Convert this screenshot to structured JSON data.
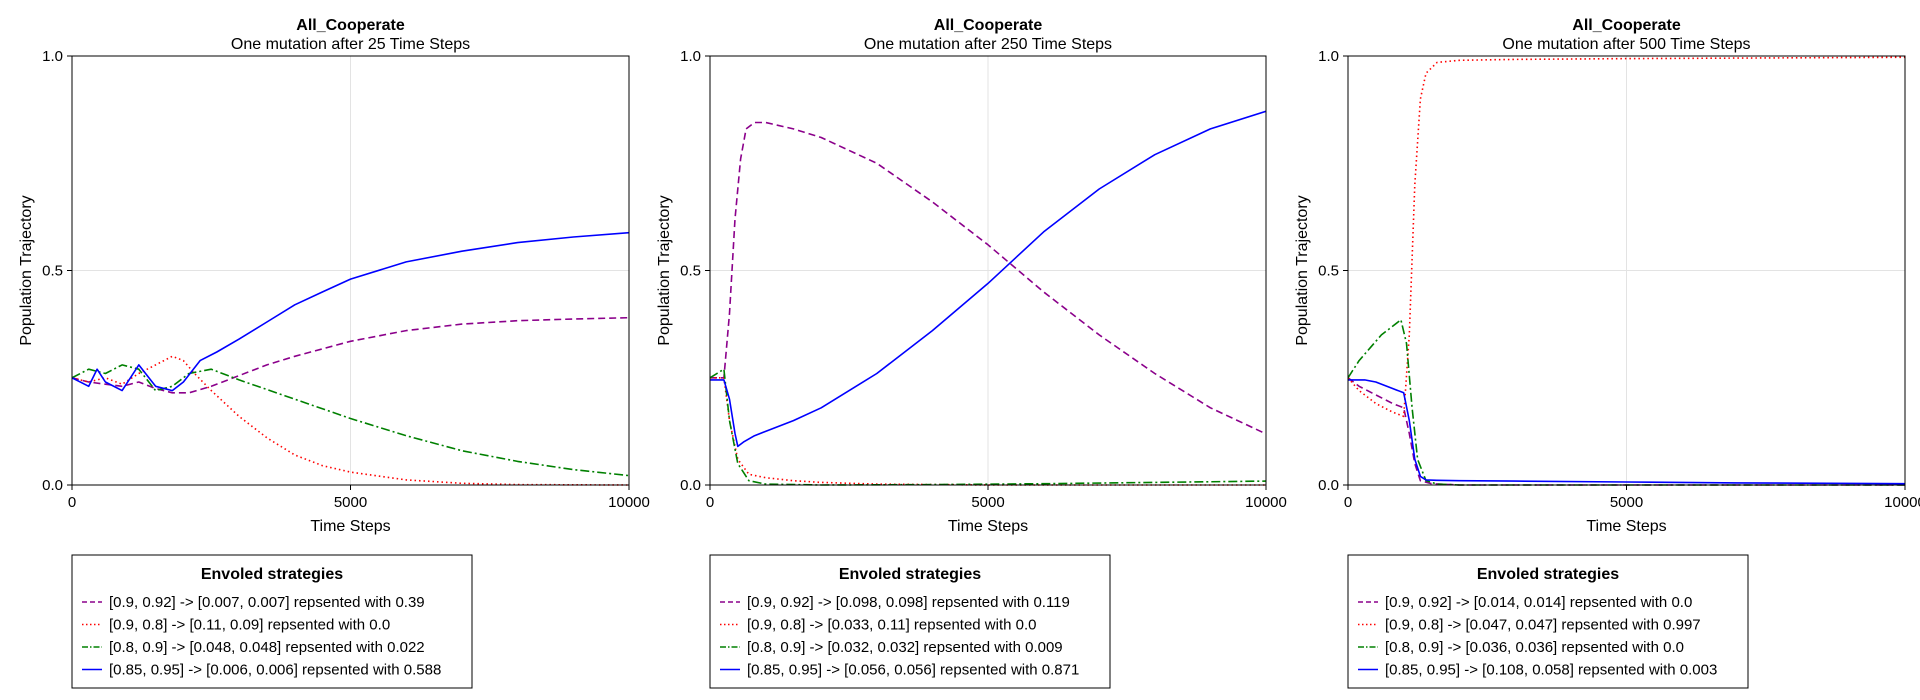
{
  "chart_data": [
    {
      "type": "line",
      "title": "All_Cooperate",
      "subtitle": "One mutation after 25 Time Steps",
      "xlabel": "Time Steps",
      "ylabel": "Population Trajectory",
      "xlim": [
        0,
        10000
      ],
      "ylim": [
        0,
        1
      ],
      "xticks": [
        "0",
        "5000",
        "10000"
      ],
      "yticks": [
        "0.0",
        "0.5",
        "1.0"
      ],
      "grid": true,
      "legend_title": "Envoled strategies",
      "legend_position": "below",
      "series": [
        {
          "name": "[0.9, 0.92] -> [0.007, 0.007] repsented with 0.39",
          "color": "#8B008B",
          "style": "dash",
          "x": [
            0,
            300,
            600,
            900,
            1200,
            1500,
            1800,
            2100,
            2500,
            3000,
            3500,
            4000,
            5000,
            6000,
            7000,
            8000,
            9000,
            10000
          ],
          "y": [
            0.25,
            0.24,
            0.235,
            0.23,
            0.24,
            0.225,
            0.215,
            0.215,
            0.23,
            0.255,
            0.28,
            0.3,
            0.335,
            0.36,
            0.375,
            0.383,
            0.387,
            0.39
          ]
        },
        {
          "name": "[0.9, 0.8] -> [0.11, 0.09] repsented with 0.0",
          "color": "#FF0000",
          "style": "dot",
          "x": [
            0,
            300,
            600,
            900,
            1200,
            1500,
            1800,
            2000,
            2200,
            2500,
            3000,
            3500,
            4000,
            4500,
            5000,
            6000,
            7000,
            8000,
            10000
          ],
          "y": [
            0.25,
            0.24,
            0.25,
            0.235,
            0.26,
            0.28,
            0.3,
            0.29,
            0.26,
            0.22,
            0.16,
            0.11,
            0.07,
            0.045,
            0.03,
            0.012,
            0.004,
            0.001,
            0.0
          ]
        },
        {
          "name": "[0.8, 0.9] -> [0.048, 0.048] repsented with 0.022",
          "color": "#008000",
          "style": "dashdot",
          "x": [
            0,
            300,
            600,
            900,
            1200,
            1500,
            1800,
            2100,
            2500,
            3000,
            4000,
            5000,
            6000,
            7000,
            8000,
            9000,
            10000
          ],
          "y": [
            0.25,
            0.27,
            0.26,
            0.28,
            0.27,
            0.22,
            0.23,
            0.26,
            0.27,
            0.245,
            0.2,
            0.155,
            0.115,
            0.08,
            0.055,
            0.036,
            0.022
          ]
        },
        {
          "name": "[0.85, 0.95] -> [0.006, 0.006] repsented with 0.588",
          "color": "#0000FF",
          "style": "solid",
          "x": [
            0,
            300,
            450,
            600,
            900,
            1200,
            1500,
            1800,
            2000,
            2300,
            2600,
            3000,
            3500,
            4000,
            4500,
            5000,
            6000,
            7000,
            8000,
            9000,
            10000
          ],
          "y": [
            0.25,
            0.23,
            0.27,
            0.24,
            0.22,
            0.28,
            0.23,
            0.22,
            0.24,
            0.29,
            0.31,
            0.34,
            0.38,
            0.42,
            0.45,
            0.48,
            0.52,
            0.545,
            0.565,
            0.578,
            0.588
          ]
        }
      ]
    },
    {
      "type": "line",
      "title": "All_Cooperate",
      "subtitle": "One mutation after 250 Time Steps",
      "xlabel": "Time Steps",
      "ylabel": "Population Trajectory",
      "xlim": [
        0,
        10000
      ],
      "ylim": [
        0,
        1
      ],
      "xticks": [
        "0",
        "5000",
        "10000"
      ],
      "yticks": [
        "0.0",
        "0.5",
        "1.0"
      ],
      "grid": true,
      "legend_title": "Envoled strategies",
      "legend_position": "below",
      "series": [
        {
          "name": "[0.9, 0.92] -> [0.098, 0.098] repsented with 0.119",
          "color": "#8B008B",
          "style": "dash",
          "x": [
            0,
            250,
            350,
            450,
            550,
            650,
            800,
            1000,
            1500,
            2000,
            3000,
            4000,
            5000,
            6000,
            7000,
            8000,
            9000,
            10000
          ],
          "y": [
            0.25,
            0.25,
            0.4,
            0.62,
            0.76,
            0.83,
            0.845,
            0.845,
            0.83,
            0.81,
            0.75,
            0.66,
            0.56,
            0.45,
            0.35,
            0.26,
            0.18,
            0.119
          ]
        },
        {
          "name": "[0.9, 0.8] -> [0.033, 0.11] repsented with 0.0",
          "color": "#FF0000",
          "style": "dot",
          "x": [
            0,
            250,
            350,
            500,
            700,
            1000,
            1500,
            2000,
            3000,
            5000,
            10000
          ],
          "y": [
            0.25,
            0.25,
            0.15,
            0.06,
            0.025,
            0.017,
            0.01,
            0.006,
            0.002,
            0.0,
            0.0
          ]
        },
        {
          "name": "[0.8, 0.9] -> [0.032, 0.032] repsented with 0.009",
          "color": "#008000",
          "style": "dashdot",
          "x": [
            0,
            250,
            350,
            500,
            700,
            1000,
            2000,
            4000,
            6000,
            8000,
            10000
          ],
          "y": [
            0.25,
            0.27,
            0.15,
            0.05,
            0.01,
            0.002,
            0.0,
            0.001,
            0.003,
            0.006,
            0.009
          ]
        },
        {
          "name": "[0.85, 0.95] -> [0.056, 0.056] repsented with 0.871",
          "color": "#0000FF",
          "style": "solid",
          "x": [
            0,
            250,
            350,
            450,
            500,
            600,
            800,
            1000,
            1500,
            2000,
            3000,
            4000,
            5000,
            6000,
            7000,
            8000,
            9000,
            10000
          ],
          "y": [
            0.245,
            0.245,
            0.2,
            0.12,
            0.09,
            0.1,
            0.115,
            0.125,
            0.15,
            0.18,
            0.26,
            0.36,
            0.47,
            0.59,
            0.69,
            0.77,
            0.83,
            0.871
          ]
        }
      ]
    },
    {
      "type": "line",
      "title": "All_Cooperate",
      "subtitle": "One mutation after 500 Time Steps",
      "xlabel": "Time Steps",
      "ylabel": "Population Trajectory",
      "xlim": [
        0,
        10000
      ],
      "ylim": [
        0,
        1
      ],
      "xticks": [
        "0",
        "5000",
        "10000"
      ],
      "yticks": [
        "0.0",
        "0.5",
        "1.0"
      ],
      "grid": true,
      "legend_title": "Envoled strategies",
      "legend_position": "below",
      "series": [
        {
          "name": "[0.9, 0.92] -> [0.014, 0.014] repsented with 0.0",
          "color": "#8B008B",
          "style": "dash",
          "x": [
            0,
            200,
            500,
            800,
            1000,
            1100,
            1200,
            1300,
            1500,
            2000,
            5000,
            10000
          ],
          "y": [
            0.25,
            0.23,
            0.21,
            0.19,
            0.18,
            0.12,
            0.05,
            0.01,
            0.003,
            0.0,
            0.0,
            0.0
          ]
        },
        {
          "name": "[0.9, 0.8] -> [0.047, 0.047] repsented with 0.997",
          "color": "#FF0000",
          "style": "dot",
          "x": [
            0,
            200,
            500,
            800,
            1000,
            1100,
            1200,
            1300,
            1400,
            1600,
            2000,
            3000,
            5000,
            10000
          ],
          "y": [
            0.25,
            0.22,
            0.19,
            0.17,
            0.16,
            0.35,
            0.7,
            0.9,
            0.96,
            0.985,
            0.99,
            0.992,
            0.994,
            0.997
          ]
        },
        {
          "name": "[0.8, 0.9] -> [0.036, 0.036] repsented with 0.0",
          "color": "#008000",
          "style": "dashdot",
          "x": [
            0,
            200,
            400,
            600,
            800,
            950,
            1050,
            1150,
            1250,
            1400,
            1600,
            2000,
            5000,
            10000
          ],
          "y": [
            0.25,
            0.29,
            0.32,
            0.35,
            0.37,
            0.385,
            0.33,
            0.18,
            0.06,
            0.01,
            0.002,
            0.0,
            0.0,
            0.0
          ]
        },
        {
          "name": "[0.85, 0.95] -> [0.108, 0.058] repsented with 0.003",
          "color": "#0000FF",
          "style": "solid",
          "x": [
            0,
            300,
            500,
            800,
            1000,
            1100,
            1200,
            1300,
            1400,
            1600,
            2000,
            3000,
            5000,
            7000,
            10000
          ],
          "y": [
            0.245,
            0.245,
            0.24,
            0.225,
            0.215,
            0.15,
            0.06,
            0.02,
            0.012,
            0.011,
            0.01,
            0.009,
            0.007,
            0.005,
            0.003
          ]
        }
      ]
    }
  ]
}
